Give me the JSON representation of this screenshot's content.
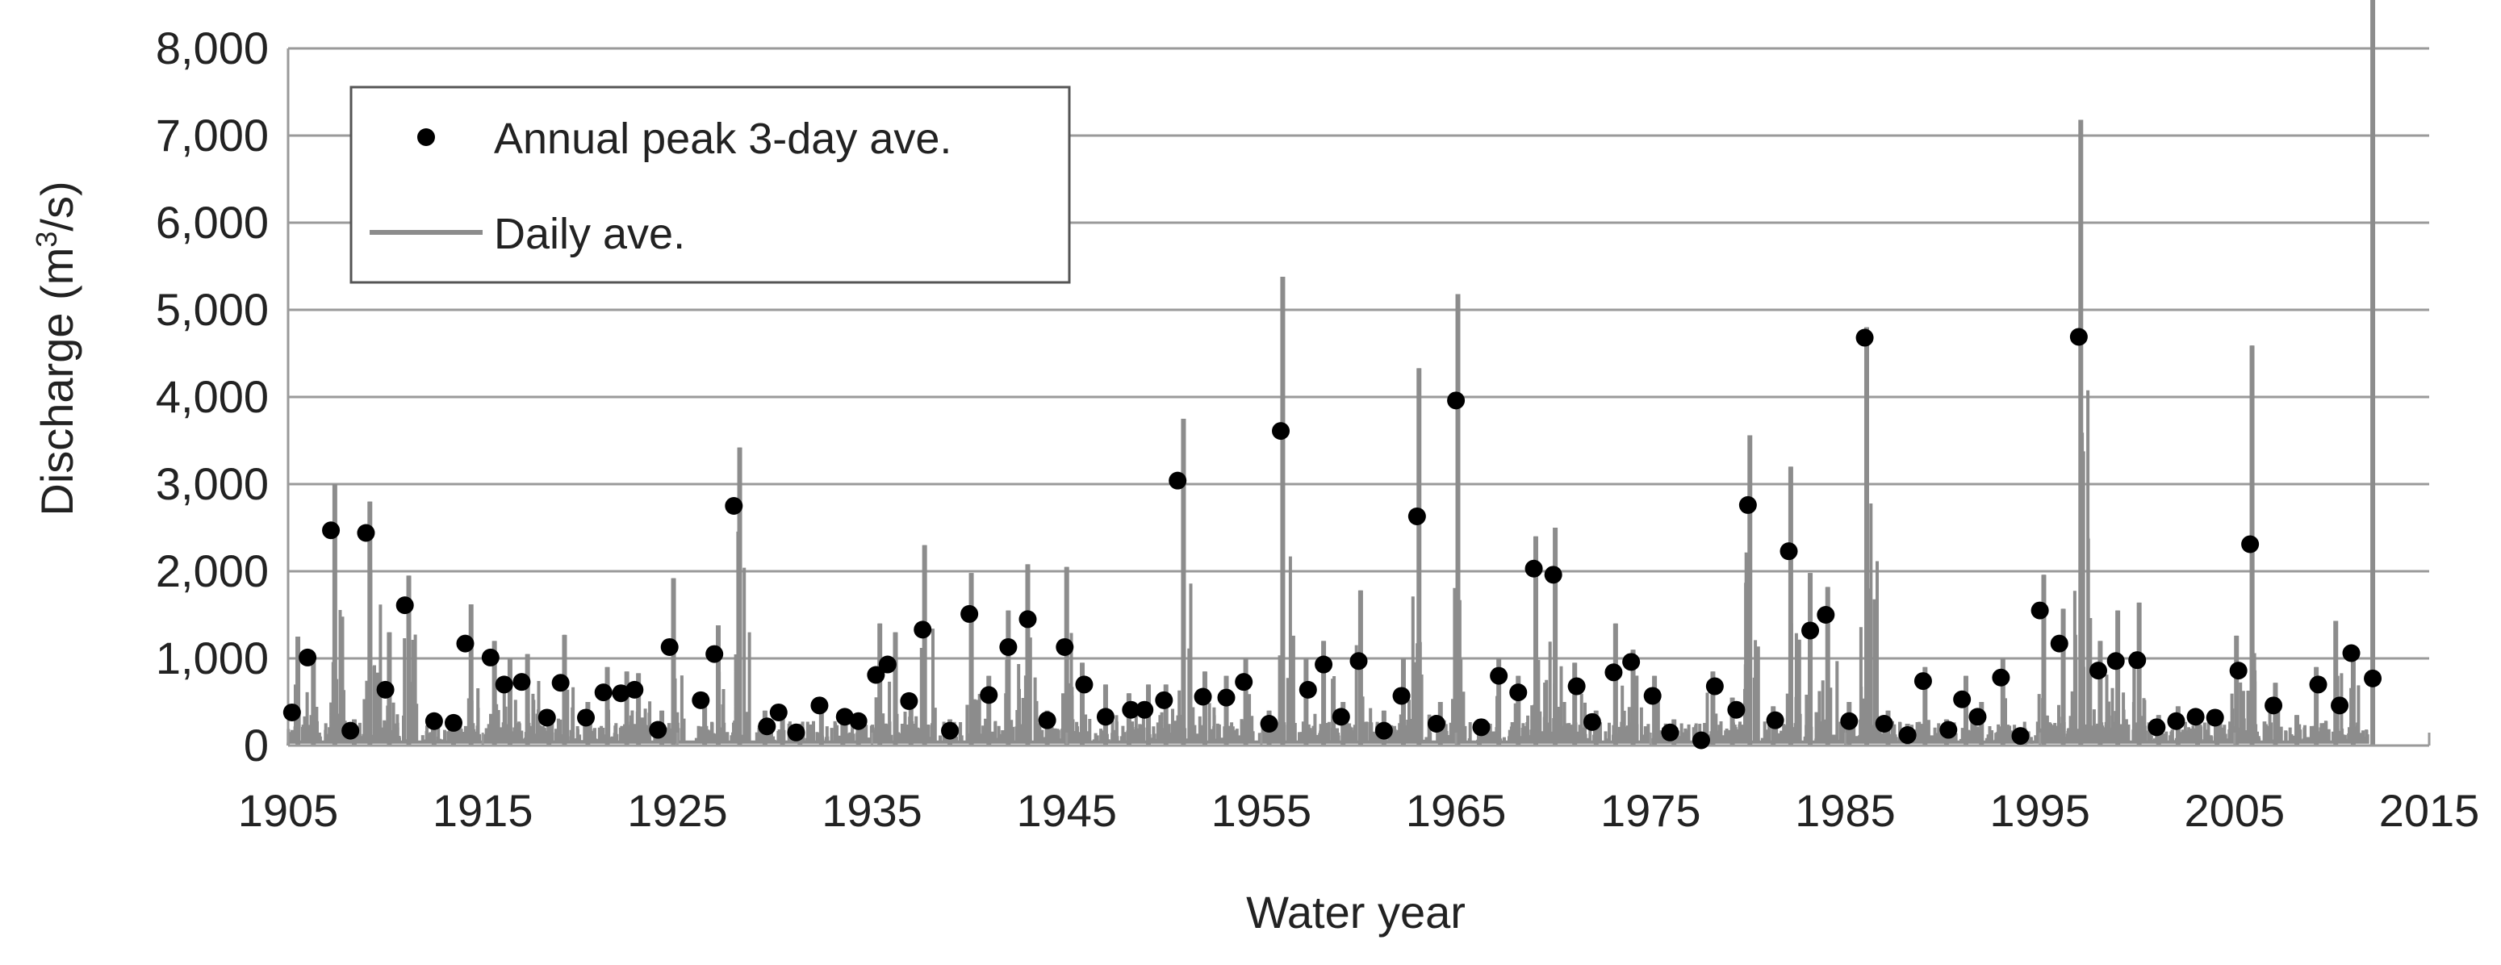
{
  "chart_data": {
    "type": "line",
    "title": "",
    "xlabel": "Water year",
    "ylabel_prefix": "Discharge (m",
    "ylabel_sup": "3",
    "ylabel_suffix": "/s)",
    "xlim": [
      1905,
      2015
    ],
    "ylim": [
      0,
      8000
    ],
    "xticks": [
      1905,
      1915,
      1925,
      1935,
      1945,
      1955,
      1965,
      1975,
      1985,
      1995,
      2005,
      2015
    ],
    "xtick_labels": [
      "1905",
      "1915",
      "1925",
      "1935",
      "1945",
      "1955",
      "1965",
      "1975",
      "1985",
      "1995",
      "2005",
      "2015"
    ],
    "yticks": [
      0,
      1000,
      2000,
      3000,
      4000,
      5000,
      6000,
      7000,
      8000
    ],
    "ytick_labels": [
      "0",
      "1,000",
      "2,000",
      "3,000",
      "4,000",
      "5,000",
      "6,000",
      "7,000",
      "8,000"
    ],
    "grid": "horizontal",
    "legend_position": "top-left",
    "colors": {
      "daily": "#8c8c8c",
      "peak": "#000000",
      "grid": "#9a9a9a",
      "axis": "#9a9a9a"
    },
    "series": [
      {
        "name": "Annual peak 3-day ave.",
        "marker": "circle",
        "x": [
          1905.2,
          1906.0,
          1907.2,
          1908.2,
          1909.0,
          1910.0,
          1911.0,
          1912.5,
          1913.5,
          1914.1,
          1915.4,
          1916.1,
          1917.0,
          1918.3,
          1919.0,
          1920.3,
          1921.2,
          1922.1,
          1922.8,
          1924.0,
          1924.6,
          1926.2,
          1926.9,
          1927.9,
          1929.6,
          1930.2,
          1931.1,
          1932.3,
          1933.6,
          1934.3,
          1935.2,
          1935.8,
          1936.9,
          1937.6,
          1939.0,
          1940.0,
          1941.0,
          1942.0,
          1943.0,
          1944.0,
          1944.9,
          1945.9,
          1947.0,
          1948.3,
          1949.0,
          1950.0,
          1950.7,
          1952.0,
          1953.2,
          1954.1,
          1955.4,
          1956.0,
          1957.4,
          1958.2,
          1959.1,
          1960.0,
          1961.3,
          1962.2,
          1963.0,
          1964.0,
          1965.0,
          1966.3,
          1967.2,
          1968.2,
          1969.0,
          1970.0,
          1971.2,
          1972.0,
          1973.1,
          1974.0,
          1975.1,
          1976.0,
          1977.6,
          1978.3,
          1979.4,
          1980.0,
          1981.4,
          1982.1,
          1983.2,
          1984.0,
          1985.2,
          1986.0,
          1987.0,
          1988.2,
          1989.0,
          1990.3,
          1991.0,
          1991.8,
          1993.0,
          1994.0,
          1995.0,
          1996.0,
          1997.0,
          1998.0,
          1998.9,
          2000.0,
          2001.0,
          2002.0,
          2003.0,
          2004.0,
          2005.2,
          2005.8,
          2007.0,
          2009.3,
          2010.4,
          2011.0,
          2012.1
        ],
        "y": [
          380,
          1010,
          2470,
          170,
          2440,
          640,
          1610,
          280,
          260,
          1170,
          1010,
          700,
          730,
          320,
          720,
          320,
          610,
          600,
          640,
          180,
          1130,
          520,
          1050,
          2750,
          220,
          380,
          150,
          460,
          330,
          280,
          810,
          930,
          510,
          1330,
          170,
          1510,
          580,
          1130,
          1450,
          290,
          1130,
          700,
          330,
          410,
          410,
          520,
          3040,
          560,
          550,
          730,
          250,
          3610,
          640,
          930,
          330,
          970,
          170,
          570,
          2630,
          250,
          3960,
          210,
          800,
          610,
          2030,
          1960,
          680,
          270,
          840,
          960,
          570,
          150,
          60,
          680,
          410,
          2760,
          290,
          2230,
          1320,
          1500,
          280,
          4680,
          250,
          120,
          740,
          180,
          530,
          330,
          780,
          110,
          1550,
          1170,
          4690,
          860,
          970,
          980,
          210,
          280,
          330,
          320,
          860,
          2310,
          460,
          700,
          460,
          1060,
          770
        ]
      },
      {
        "name": "Daily ave.",
        "marker": "line",
        "annual_max_x": [
          1905.5,
          1906.3,
          1907.4,
          1908.4,
          1909.2,
          1910.2,
          1911.2,
          1912.5,
          1913.5,
          1914.4,
          1915.6,
          1916.4,
          1917.3,
          1918.4,
          1919.2,
          1920.4,
          1921.4,
          1922.4,
          1923.0,
          1924.2,
          1924.8,
          1926.4,
          1927.1,
          1928.2,
          1929.5,
          1930.4,
          1931.3,
          1932.4,
          1933.5,
          1934.3,
          1935.4,
          1936.2,
          1937.0,
          1937.7,
          1939.0,
          1940.1,
          1941.0,
          1942.0,
          1943.0,
          1944.0,
          1945.0,
          1945.8,
          1947.0,
          1948.2,
          1949.2,
          1950.1,
          1951.0,
          1952.1,
          1953.2,
          1954.2,
          1955.4,
          1956.1,
          1957.3,
          1958.2,
          1959.2,
          1960.1,
          1961.3,
          1962.3,
          1963.1,
          1964.2,
          1965.1,
          1966.2,
          1967.2,
          1968.2,
          1969.1,
          1970.1,
          1971.1,
          1972.2,
          1973.2,
          1974.1,
          1975.2,
          1976.2,
          1977.5,
          1978.2,
          1979.2,
          1980.1,
          1981.3,
          1982.2,
          1983.2,
          1984.1,
          1985.2,
          1986.1,
          1987.2,
          1988.2,
          1989.1,
          1990.2,
          1991.2,
          1992.0,
          1993.1,
          1994.2,
          1995.2,
          1996.2,
          1997.1,
          1998.1,
          1999.0,
          2000.1,
          2001.1,
          2002.1,
          2003.1,
          2004.1,
          2005.1,
          2005.9,
          2007.1,
          2008.2,
          2009.2,
          2010.2,
          2011.1,
          2012.1
        ],
        "annual_max_y": [
          1250,
          1000,
          3000,
          300,
          2800,
          1300,
          1950,
          350,
          350,
          1620,
          1200,
          1000,
          1050,
          400,
          1270,
          500,
          900,
          850,
          830,
          400,
          1920,
          600,
          1380,
          3420,
          400,
          450,
          250,
          480,
          400,
          350,
          1400,
          1300,
          600,
          2300,
          300,
          1980,
          800,
          1550,
          2080,
          400,
          2050,
          950,
          700,
          600,
          700,
          700,
          3750,
          850,
          800,
          1000,
          400,
          5380,
          1000,
          1200,
          500,
          1780,
          400,
          1000,
          4330,
          500,
          5180,
          300,
          1000,
          800,
          2400,
          2500,
          950,
          400,
          1400,
          1100,
          800,
          300,
          150,
          850,
          550,
          3560,
          450,
          3200,
          1980,
          1820,
          500,
          4800,
          400,
          250,
          900,
          300,
          800,
          500,
          1000,
          200,
          1960,
          1570,
          7180,
          1200,
          1550,
          1640,
          350,
          450,
          400,
          400,
          1260,
          4590,
          720,
          350,
          900,
          1430,
          1030
        ]
      }
    ]
  }
}
